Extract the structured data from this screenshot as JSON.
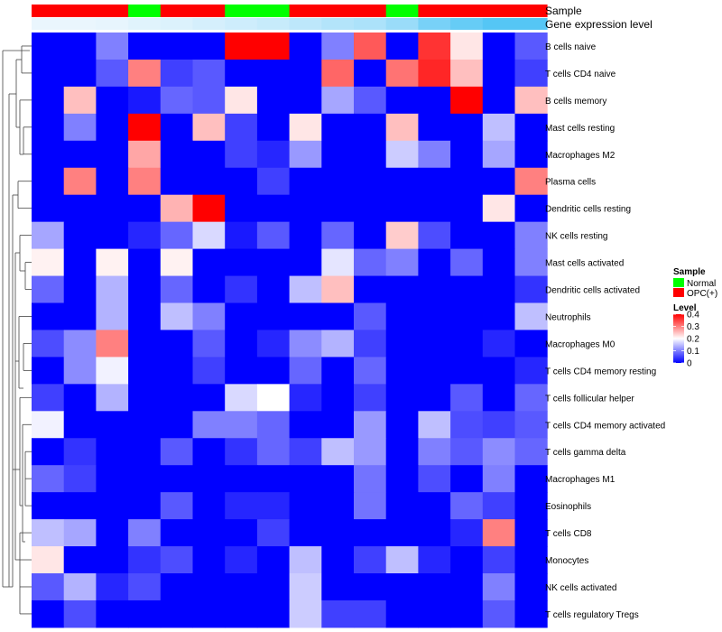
{
  "chart_data": {
    "type": "heatmap",
    "annotation_labels": {
      "sample": "Sample",
      "expression": "Gene expression level"
    },
    "sample_groups": [
      "OPC(+)",
      "OPC(+)",
      "OPC(+)",
      "Normal",
      "OPC(+)",
      "OPC(+)",
      "Normal",
      "Normal",
      "OPC(+)",
      "OPC(+)",
      "OPC(+)",
      "Normal",
      "OPC(+)",
      "OPC(+)",
      "OPC(+)",
      "OPC(+)"
    ],
    "expression_levels": [
      0.02,
      0.02,
      0.03,
      0.05,
      0.06,
      0.08,
      0.1,
      0.12,
      0.15,
      0.18,
      0.2,
      0.25,
      0.35,
      0.4,
      0.45,
      0.45
    ],
    "rows": [
      "B cells naive",
      "T cells CD4 naive",
      "B cells memory",
      "Mast cells resting",
      "Macrophages M2",
      "Plasma cells",
      "Dendritic cells resting",
      "NK cells resting",
      "Mast cells activated",
      "Dendritic cells activated",
      "Neutrophils",
      "Macrophages M0",
      "T cells CD4 memory resting",
      "T cells follicular helper",
      "T cells CD4 memory activated",
      "T cells gamma delta",
      "Macrophages M1",
      "Eosinophils",
      "T cells CD8",
      "Monocytes",
      "NK cells activated",
      "T cells regulatory  Tregs"
    ],
    "values": [
      [
        0,
        0,
        0.1,
        0,
        0,
        0,
        0.4,
        0.4,
        0,
        0.1,
        0.33,
        0,
        0.36,
        0.22,
        0,
        0.07
      ],
      [
        0,
        0,
        0.07,
        0.3,
        0.05,
        0.07,
        0,
        0,
        0,
        0.32,
        0,
        0.31,
        0.37,
        0.25,
        0,
        0.05
      ],
      [
        0,
        0.25,
        0,
        0.02,
        0.08,
        0.07,
        0.22,
        0,
        0,
        0.13,
        0.07,
        0,
        0,
        0.4,
        0,
        0.25
      ],
      [
        0,
        0.1,
        0,
        0.4,
        0,
        0.25,
        0.05,
        0,
        0.22,
        0,
        0,
        0.25,
        0,
        0,
        0.15,
        0
      ],
      [
        0,
        0,
        0,
        0.27,
        0,
        0,
        0.05,
        0.03,
        0.12,
        0,
        0,
        0.16,
        0.1,
        0,
        0.13,
        0
      ],
      [
        0,
        0.3,
        0,
        0.3,
        0,
        0,
        0,
        0.05,
        0,
        0,
        0,
        0,
        0,
        0,
        0,
        0.3
      ],
      [
        0,
        0,
        0,
        0,
        0.26,
        0.4,
        0,
        0,
        0,
        0,
        0,
        0,
        0,
        0,
        0.22,
        0
      ],
      [
        0.13,
        0,
        0,
        0.03,
        0.08,
        0.17,
        0.02,
        0.07,
        0,
        0.08,
        0,
        0.24,
        0.06,
        0,
        0,
        0.1
      ],
      [
        0.21,
        0,
        0.21,
        0,
        0.21,
        0,
        0,
        0,
        0,
        0.18,
        0.08,
        0.1,
        0,
        0.08,
        0,
        0.1
      ],
      [
        0.08,
        0,
        0.14,
        0,
        0.08,
        0,
        0.04,
        0,
        0.15,
        0.25,
        0,
        0,
        0,
        0,
        0,
        0.04
      ],
      [
        0,
        0,
        0.14,
        0,
        0.15,
        0.1,
        0,
        0,
        0,
        0,
        0.07,
        0,
        0,
        0,
        0,
        0.15
      ],
      [
        0.06,
        0.11,
        0.3,
        0,
        0,
        0.07,
        0,
        0.03,
        0.11,
        0.14,
        0.05,
        0,
        0,
        0,
        0.03,
        0
      ],
      [
        0,
        0.11,
        0.19,
        0,
        0,
        0.05,
        0,
        0,
        0.08,
        0,
        0.08,
        0,
        0,
        0,
        0,
        0.03
      ],
      [
        0.05,
        0,
        0.14,
        0,
        0,
        0,
        0.17,
        0.2,
        0.03,
        0,
        0.05,
        0,
        0,
        0.07,
        0,
        0.08
      ],
      [
        0.19,
        0,
        0,
        0,
        0,
        0.1,
        0.1,
        0.08,
        0,
        0,
        0.12,
        0,
        0.15,
        0.06,
        0.05,
        0.07
      ],
      [
        0,
        0.04,
        0,
        0,
        0.07,
        0,
        0.04,
        0.08,
        0.05,
        0.15,
        0.12,
        0,
        0.1,
        0.07,
        0.11,
        0.08
      ],
      [
        0.08,
        0.05,
        0,
        0,
        0,
        0,
        0,
        0,
        0,
        0,
        0.09,
        0,
        0.06,
        0,
        0.1,
        0
      ],
      [
        0,
        0,
        0,
        0,
        0.07,
        0,
        0.03,
        0.03,
        0,
        0,
        0.09,
        0,
        0,
        0.08,
        0.05,
        0
      ],
      [
        0.15,
        0.13,
        0,
        0.1,
        0,
        0,
        0,
        0.05,
        0,
        0,
        0,
        0,
        0,
        0.03,
        0.3,
        0
      ],
      [
        0.22,
        0,
        0,
        0.04,
        0.06,
        0,
        0.03,
        0,
        0.15,
        0,
        0.05,
        0.15,
        0.03,
        0,
        0.05,
        0
      ],
      [
        0.07,
        0.14,
        0.03,
        0.06,
        0,
        0,
        0,
        0,
        0.16,
        0,
        0,
        0,
        0,
        0,
        0.1,
        0
      ],
      [
        0,
        0.06,
        0,
        0,
        0,
        0,
        0,
        0,
        0.16,
        0.05,
        0.05,
        0,
        0,
        0,
        0.07,
        0
      ]
    ],
    "legend_sample": {
      "title": "Sample",
      "entries": [
        {
          "label": "Normal",
          "color": "#00ff00"
        },
        {
          "label": "OPC(+)",
          "color": "#ff0000"
        }
      ]
    },
    "legend_level": {
      "title": "Level",
      "ticks": [
        0,
        0.1,
        0.2,
        0.3,
        0.4
      ],
      "tick_labels": [
        "0",
        "0.1",
        "0.2",
        "0.3",
        "0.4"
      ]
    },
    "color_scale": {
      "min": 0,
      "mid": 0.2,
      "max": 0.4,
      "low": "#0000ff",
      "mid_color": "#ffffff",
      "high": "#ff0000"
    },
    "annotation_colors": {
      "Normal": "#00ff00",
      "OPC(+)": "#ff0000",
      "expr_low": "#eaf6fd",
      "expr_high": "#55c6f5"
    }
  }
}
